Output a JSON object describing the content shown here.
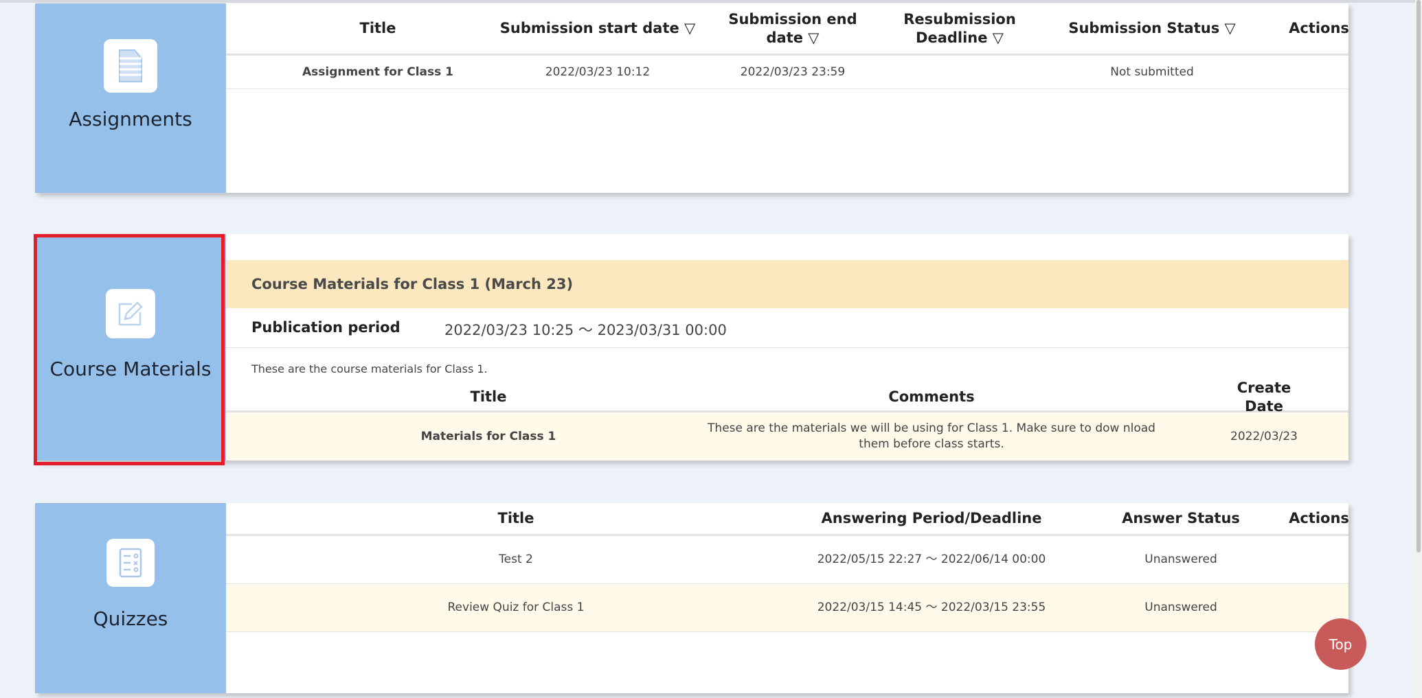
{
  "assignments": {
    "label": "Assignments",
    "icon": "document-icon",
    "headers": [
      "Title",
      "Submission start date ▽",
      "Submission end date ▽",
      "Resubmission Deadline ▽",
      "Submission Status ▽",
      "Actions"
    ],
    "rows": [
      {
        "title": "Assignment for Class 1",
        "start": "2022/03/23 10:12",
        "end": "2022/03/23 23:59",
        "resubmission": "",
        "status": "Not submitted",
        "actions": ""
      }
    ]
  },
  "materials": {
    "label": "Course Materials",
    "icon": "edit-icon",
    "group_title": "Course Materials for Class 1 (March 23)",
    "publication_label": "Publication period",
    "publication_value": "2022/03/23 10:25 ～ 2023/03/31 00:00",
    "description": "These are the course materials for Class 1.",
    "headers": [
      "Title",
      "Comments",
      "Create Date"
    ],
    "rows": [
      {
        "title": "Materials for Class 1",
        "comments": "These are the materials we will be using for Class 1. Make sure to dow nload them before class starts.",
        "date": "2022/03/23"
      }
    ]
  },
  "quizzes": {
    "label": "Quizzes",
    "icon": "checklist-icon",
    "headers": [
      "Title",
      "Answering Period/Deadline",
      "Answer Status",
      "Actions"
    ],
    "rows": [
      {
        "title": "Test 2",
        "period": "2022/05/15 22:27 ～ 2022/06/14 00:00",
        "status": "Unanswered",
        "actions": ""
      },
      {
        "title": "Review Quiz for Class 1",
        "period": "2022/03/15 14:45 ～ 2022/03/15 23:55",
        "status": "Unanswered",
        "actions": ""
      }
    ]
  },
  "top_button": "Top",
  "colors": {
    "side_panel": "#95c0e9",
    "highlight": "#e41d2b",
    "group_band": "#fbe8bf",
    "top_button": "#c85a5a"
  }
}
